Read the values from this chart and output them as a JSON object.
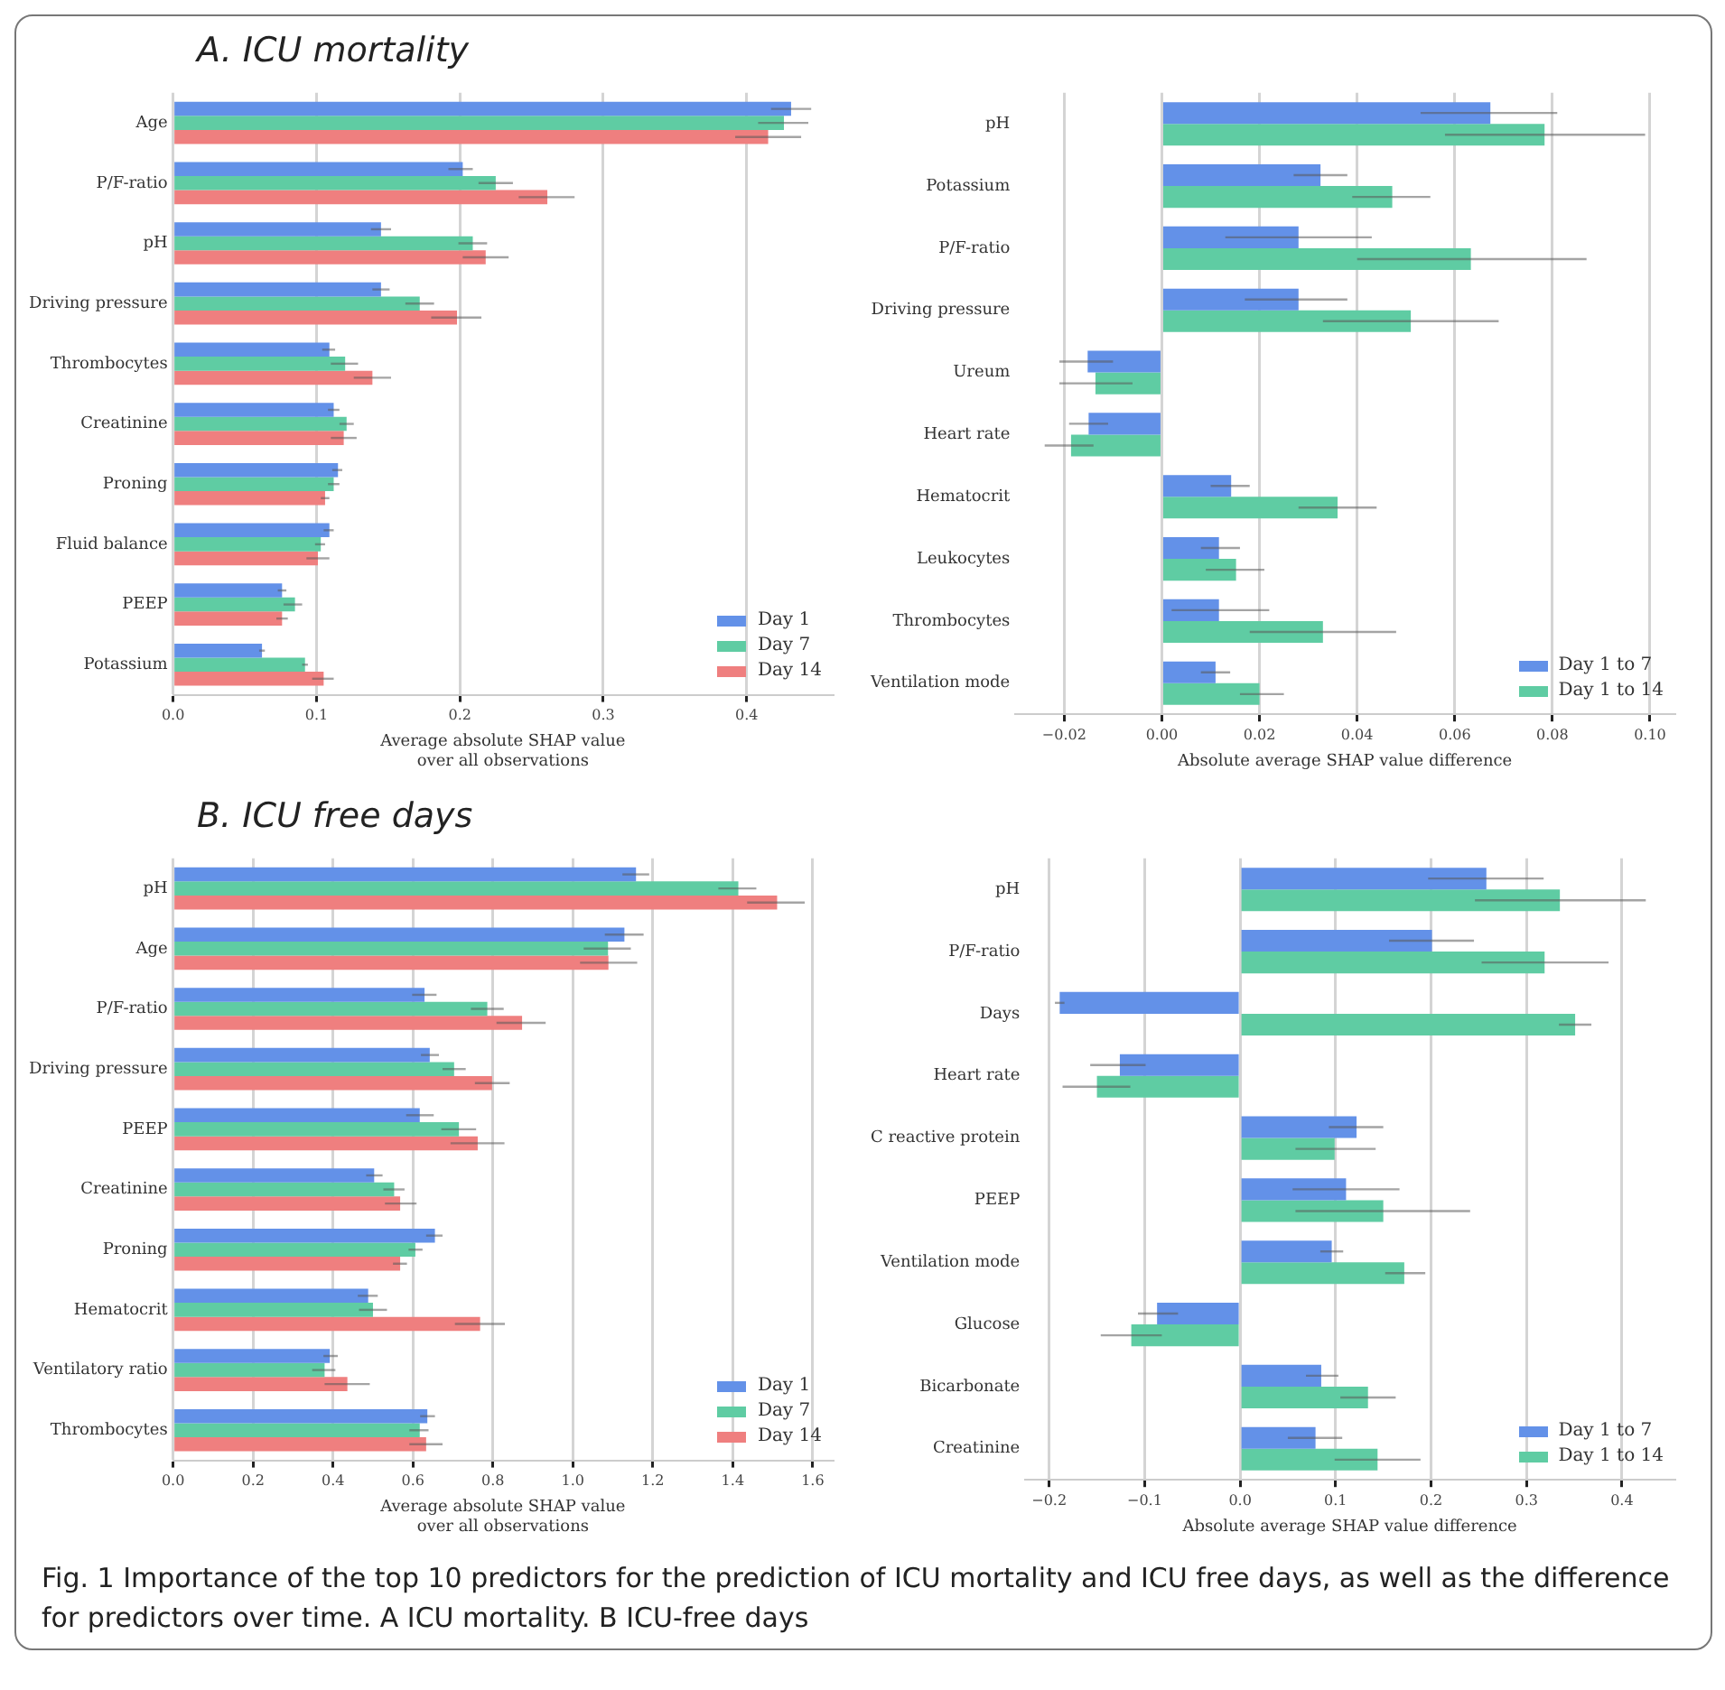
{
  "chart_data": [
    {
      "type": "bar",
      "orientation": "horizontal",
      "title": "A.  ICU mortality",
      "xlabel": "Average absolute SHAP value\nover all observations",
      "categories": [
        "Age",
        "P/F-ratio",
        "pH",
        "Driving pressure",
        "Thrombocytes",
        "Creatinine",
        "Proning",
        "Fluid balance",
        "PEEP",
        "Potassium"
      ],
      "xlim": [
        0,
        0.46
      ],
      "xticks": [
        {
          "value": 0,
          "label": "0.0"
        },
        {
          "value": 0.1,
          "label": "0.1"
        },
        {
          "value": 0.2,
          "label": "0.2"
        },
        {
          "value": 0.3,
          "label": "0.3"
        },
        {
          "value": 0.4,
          "label": "0.4"
        }
      ],
      "grid": "x",
      "legend": "bottom right",
      "series": [
        {
          "name": "Day 1",
          "color": "#6391e8",
          "values": [
            0.431,
            0.202,
            0.145,
            0.145,
            0.109,
            0.112,
            0.115,
            0.109,
            0.076,
            0.062
          ],
          "errors": [
            [
              0.417,
              0.445
            ],
            [
              0.192,
              0.209
            ],
            [
              0.138,
              0.152
            ],
            [
              0.139,
              0.151
            ],
            [
              0.104,
              0.113
            ],
            [
              0.108,
              0.116
            ],
            [
              0.111,
              0.118
            ],
            [
              0.105,
              0.112
            ],
            [
              0.073,
              0.079
            ],
            [
              0.06,
              0.064
            ]
          ]
        },
        {
          "name": "Day 7",
          "color": "#5fcca3",
          "values": [
            0.426,
            0.225,
            0.209,
            0.172,
            0.12,
            0.121,
            0.112,
            0.103,
            0.085,
            0.092
          ],
          "errors": [
            [
              0.408,
              0.443
            ],
            [
              0.213,
              0.237
            ],
            [
              0.199,
              0.219
            ],
            [
              0.162,
              0.182
            ],
            [
              0.11,
              0.129
            ],
            [
              0.116,
              0.126
            ],
            [
              0.108,
              0.116
            ],
            [
              0.099,
              0.106
            ],
            [
              0.077,
              0.09
            ],
            [
              0.09,
              0.094
            ]
          ]
        },
        {
          "name": "Day 14",
          "color": "#ef7f7f",
          "values": [
            0.415,
            0.261,
            0.218,
            0.198,
            0.139,
            0.119,
            0.106,
            0.101,
            0.076,
            0.105
          ],
          "errors": [
            [
              0.392,
              0.438
            ],
            [
              0.241,
              0.28
            ],
            [
              0.202,
              0.234
            ],
            [
              0.18,
              0.215
            ],
            [
              0.126,
              0.152
            ],
            [
              0.11,
              0.128
            ],
            [
              0.103,
              0.109
            ],
            [
              0.093,
              0.109
            ],
            [
              0.072,
              0.08
            ],
            [
              0.097,
              0.112
            ]
          ]
        }
      ]
    },
    {
      "type": "bar",
      "orientation": "horizontal",
      "xlabel": "Absolute average SHAP value difference",
      "categories": [
        "pH",
        "Potassium",
        "P/F-ratio",
        "Driving pressure",
        "Ureum",
        "Heart rate",
        "Hematocrit",
        "Leukocytes",
        "Thrombocytes",
        "Ventilation mode"
      ],
      "xlim": [
        -0.03,
        0.105
      ],
      "xticks": [
        {
          "value": -0.02,
          "label": "−0.02"
        },
        {
          "value": 0,
          "label": "0.00"
        },
        {
          "value": 0.02,
          "label": "0.02"
        },
        {
          "value": 0.04,
          "label": "0.04"
        },
        {
          "value": 0.06,
          "label": "0.06"
        },
        {
          "value": 0.08,
          "label": "0.08"
        },
        {
          "value": 0.1,
          "label": "0.10"
        }
      ],
      "grid": "x",
      "legend": "bottom right",
      "series": [
        {
          "name": "Day 1 to 7",
          "color": "#6391e8",
          "values": [
            0.0673,
            0.0325,
            0.028,
            0.028,
            -0.0152,
            -0.015,
            0.0142,
            0.0117,
            0.0117,
            0.011
          ],
          "errors": [
            [
              0.053,
              0.081
            ],
            [
              0.027,
              0.038
            ],
            [
              0.013,
              0.043
            ],
            [
              0.017,
              0.038
            ],
            [
              -0.021,
              -0.01
            ],
            [
              -0.019,
              -0.011
            ],
            [
              0.01,
              0.018
            ],
            [
              0.008,
              0.016
            ],
            [
              0.002,
              0.022
            ],
            [
              0.008,
              0.014
            ]
          ]
        },
        {
          "name": "Day 1 to 14",
          "color": "#5fcca3",
          "values": [
            0.0784,
            0.0472,
            0.0633,
            0.051,
            -0.0136,
            -0.0186,
            0.036,
            0.0152,
            0.033,
            0.02
          ],
          "errors": [
            [
              0.058,
              0.099
            ],
            [
              0.039,
              0.055
            ],
            [
              0.04,
              0.087
            ],
            [
              0.033,
              0.069
            ],
            [
              -0.021,
              -0.006
            ],
            [
              -0.024,
              -0.014
            ],
            [
              0.028,
              0.044
            ],
            [
              0.009,
              0.021
            ],
            [
              0.018,
              0.048
            ],
            [
              0.016,
              0.025
            ]
          ]
        }
      ]
    },
    {
      "type": "bar",
      "orientation": "horizontal",
      "title": "B.  ICU free days",
      "xlabel": "Average absolute SHAP value\nover all observations",
      "categories": [
        "pH",
        "Age",
        "P/F-ratio",
        "Driving pressure",
        "PEEP",
        "Creatinine",
        "Proning",
        "Hematocrit",
        "Ventilatory ratio",
        "Thrombocytes"
      ],
      "xlim": [
        0,
        1.65
      ],
      "xticks": [
        {
          "value": 0,
          "label": "0.0"
        },
        {
          "value": 0.2,
          "label": "0.2"
        },
        {
          "value": 0.4,
          "label": "0.4"
        },
        {
          "value": 0.6,
          "label": "0.6"
        },
        {
          "value": 0.8,
          "label": "0.8"
        },
        {
          "value": 1,
          "label": "1.0"
        },
        {
          "value": 1.2,
          "label": "1.2"
        },
        {
          "value": 1.4,
          "label": "1.4"
        },
        {
          "value": 1.6,
          "label": "1.6"
        }
      ],
      "grid": "x",
      "legend": "bottom right",
      "series": [
        {
          "name": "Day 1",
          "color": "#6391e8",
          "values": [
            1.158,
            1.129,
            0.629,
            0.642,
            0.617,
            0.503,
            0.655,
            0.488,
            0.392,
            0.636
          ],
          "errors": [
            [
              1.124,
              1.191
            ],
            [
              1.08,
              1.177
            ],
            [
              0.598,
              0.659
            ],
            [
              0.62,
              0.665
            ],
            [
              0.583,
              0.652
            ],
            [
              0.483,
              0.524
            ],
            [
              0.633,
              0.674
            ],
            [
              0.462,
              0.512
            ],
            [
              0.376,
              0.412
            ],
            [
              0.618,
              0.655
            ]
          ]
        },
        {
          "name": "Day 7",
          "color": "#5fcca3",
          "values": [
            1.414,
            1.088,
            0.786,
            0.703,
            0.715,
            0.553,
            0.606,
            0.5,
            0.379,
            0.617
          ],
          "errors": [
            [
              1.364,
              1.459
            ],
            [
              1.027,
              1.145
            ],
            [
              0.745,
              0.827
            ],
            [
              0.674,
              0.732
            ],
            [
              0.671,
              0.758
            ],
            [
              0.526,
              0.579
            ],
            [
              0.589,
              0.624
            ],
            [
              0.465,
              0.535
            ],
            [
              0.348,
              0.406
            ],
            [
              0.591,
              0.639
            ]
          ]
        },
        {
          "name": "Day 14",
          "color": "#ef7f7f",
          "values": [
            1.511,
            1.089,
            0.873,
            0.798,
            0.762,
            0.568,
            0.568,
            0.768,
            0.436,
            0.633
          ],
          "errors": [
            [
              1.436,
              1.58
            ],
            [
              1.018,
              1.161
            ],
            [
              0.809,
              0.932
            ],
            [
              0.755,
              0.842
            ],
            [
              0.694,
              0.829
            ],
            [
              0.53,
              0.609
            ],
            [
              0.55,
              0.585
            ],
            [
              0.705,
              0.83
            ],
            [
              0.379,
              0.492
            ],
            [
              0.591,
              0.674
            ]
          ]
        }
      ]
    },
    {
      "type": "bar",
      "orientation": "horizontal",
      "xlabel": "Absolute average SHAP value difference",
      "categories": [
        "pH",
        "P/F-ratio",
        "Days",
        "Heart rate",
        "C reactive protein",
        "PEEP",
        "Ventilation mode",
        "Glucose",
        "Bicarbonate",
        "Creatinine"
      ],
      "xlim": [
        -0.225,
        0.455
      ],
      "xticks": [
        {
          "value": -0.2,
          "label": "−0.2"
        },
        {
          "value": -0.1,
          "label": "−0.1"
        },
        {
          "value": 0,
          "label": "0.0"
        },
        {
          "value": 0.1,
          "label": "0.1"
        },
        {
          "value": 0.2,
          "label": "0.2"
        },
        {
          "value": 0.3,
          "label": "0.3"
        },
        {
          "value": 0.4,
          "label": "0.4"
        }
      ],
      "grid": "x",
      "legend": "bottom right",
      "annotations": [
        "Fig. 1  Importance of the top 10 predictors for the prediction of ICU mortality and ICU free days, as well as the difference for predictors over time. A ICU mortality. B ICU-free days"
      ],
      "series": [
        {
          "name": "Day 1 to 7",
          "color": "#6391e8",
          "values": [
            0.258,
            0.201,
            -0.189,
            -0.126,
            0.122,
            0.111,
            0.096,
            -0.087,
            0.085,
            0.079
          ],
          "errors": [
            [
              0.197,
              0.318
            ],
            [
              0.156,
              0.245
            ],
            [
              -0.194,
              -0.184
            ],
            [
              -0.157,
              -0.099
            ],
            [
              0.093,
              0.15
            ],
            [
              0.055,
              0.167
            ],
            [
              0.084,
              0.108
            ],
            [
              -0.107,
              -0.065
            ],
            [
              0.069,
              0.103
            ],
            [
              0.05,
              0.107
            ]
          ]
        },
        {
          "name": "Day 1 to 14",
          "color": "#5fcca3",
          "values": [
            0.335,
            0.319,
            0.351,
            -0.15,
            0.099,
            0.15,
            0.172,
            -0.114,
            0.134,
            0.144
          ],
          "errors": [
            [
              0.246,
              0.425
            ],
            [
              0.253,
              0.386
            ],
            [
              0.334,
              0.368
            ],
            [
              -0.186,
              -0.115
            ],
            [
              0.058,
              0.142
            ],
            [
              0.058,
              0.241
            ],
            [
              0.152,
              0.194
            ],
            [
              -0.146,
              -0.082
            ],
            [
              0.105,
              0.163
            ],
            [
              0.099,
              0.189
            ]
          ]
        }
      ]
    }
  ]
}
